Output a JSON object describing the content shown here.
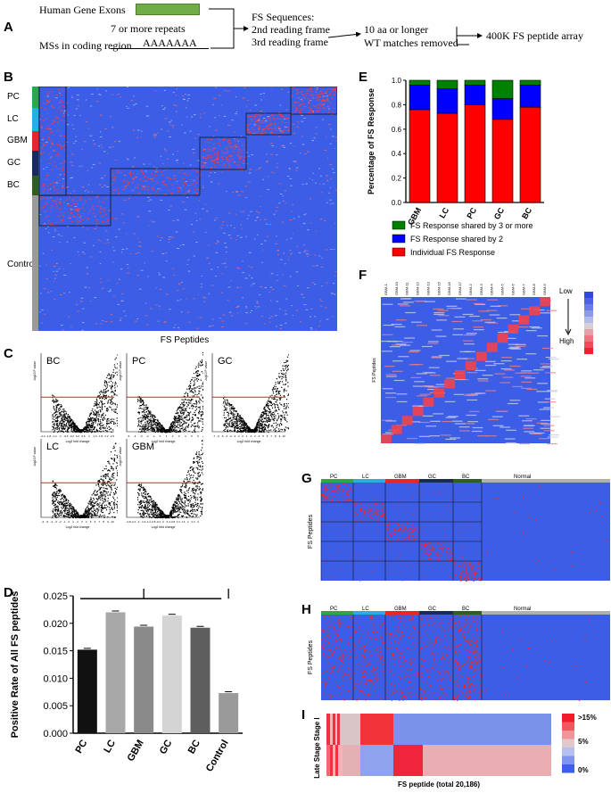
{
  "panels": {
    "A": "A",
    "B": "B",
    "C": "C",
    "D": "D",
    "E": "E",
    "F": "F",
    "G": "G",
    "H": "H",
    "I": "I"
  },
  "flow": {
    "exons": "Human Gene Exons",
    "repeats": "7 or more repeats",
    "ms": "MSs in coding region",
    "polyA": "AAAAAAA",
    "fs_title": "FS Sequences:",
    "frame2": "2nd reading frame",
    "frame3": "3rd reading frame",
    "filter1": "10 aa or longer",
    "filter2": "WT matches removed",
    "array": "400K FS peptide array"
  },
  "heatmapB": {
    "groups": [
      {
        "label": "PC",
        "color": "#2aa84a"
      },
      {
        "label": "LC",
        "color": "#27aee3"
      },
      {
        "label": "GBM",
        "color": "#e5262a"
      },
      {
        "label": "GC",
        "color": "#1a2a5e"
      },
      {
        "label": "BC",
        "color": "#2f5e23"
      },
      {
        "label": "Control",
        "color": "#9a9a9a"
      }
    ],
    "xlabel": "FS Peptides"
  },
  "volcano": {
    "xlabel": "Log2 fold change",
    "ylabel": "-log10 P value",
    "plots": [
      {
        "label": "BC",
        "xticks": [
          "-2.2",
          "-1.8",
          "-1.4",
          "-1",
          "-0.6",
          "-0.2",
          "0.2",
          "0.6",
          "1",
          "1.4",
          "1.8",
          "2.2",
          "2.6"
        ]
      },
      {
        "label": "PC",
        "xticks": [
          "-5",
          "-4",
          "-3",
          "-2",
          "-1",
          "0",
          "1",
          "2",
          "3",
          "4",
          "5",
          "6"
        ]
      },
      {
        "label": "GC",
        "xticks": [
          "-7",
          "-6",
          "-5",
          "-4",
          "-3",
          "-2",
          "-1",
          "0",
          "1",
          "2",
          "3",
          "4",
          "5",
          "6",
          "7",
          "8",
          "9",
          "10"
        ]
      },
      {
        "label": "LC",
        "xticks": [
          "-6",
          "-5",
          "-4",
          "-3",
          "-2",
          "-1",
          "0",
          "1",
          "2",
          "3",
          "4",
          "5",
          "6",
          "7",
          "8",
          "9",
          "10"
        ]
      },
      {
        "label": "GBM",
        "xticks": [
          "-2.8",
          "-2.4",
          "-2",
          "-1.6",
          "-1.2",
          "-0.8",
          "-0.4",
          "0",
          "0.4",
          "0.8",
          "1.2",
          "1.6",
          "2",
          "2.4",
          "3"
        ]
      }
    ]
  },
  "chart_data": [
    {
      "type": "bar",
      "panel": "D",
      "categories": [
        "PC",
        "LC",
        "GBM",
        "GC",
        "BC",
        "Control"
      ],
      "values": [
        0.0152,
        0.022,
        0.0194,
        0.0214,
        0.0192,
        0.0073
      ],
      "colors": [
        "#111111",
        "#a8a8a8",
        "#8a8a8a",
        "#d4d4d4",
        "#5e5e5e",
        "#9a9a9a"
      ],
      "ylabel": "Positive Rate of All FS peptides",
      "ylim": [
        0,
        0.025
      ],
      "yticks": [
        "0.000",
        "0.005",
        "0.010",
        "0.015",
        "0.020",
        "0.025"
      ],
      "annotation": "***"
    },
    {
      "type": "bar",
      "panel": "E",
      "stacked": true,
      "categories": [
        "GBM",
        "LC",
        "PC",
        "GC",
        "BC"
      ],
      "series": [
        {
          "name": "Individual FS Response",
          "color": "#ff0000",
          "values": [
            0.76,
            0.73,
            0.8,
            0.68,
            0.78
          ]
        },
        {
          "name": "FS Response shared by 2",
          "color": "#0000ff",
          "values": [
            0.2,
            0.2,
            0.16,
            0.17,
            0.18
          ]
        },
        {
          "name": "FS Response shared by 3 or more",
          "color": "#008000",
          "values": [
            0.04,
            0.07,
            0.04,
            0.15,
            0.04
          ]
        }
      ],
      "legend_order": [
        "FS Response shared by 3 or more",
        "FS Response shared by 2",
        "Individual FS Response"
      ],
      "ylabel": "Percentage of FS Response",
      "ylim": [
        0,
        1
      ],
      "yticks": [
        "0.0",
        "0.2",
        "0.4",
        "0.6",
        "0.8",
        "1.0"
      ]
    }
  ],
  "heatmapF": {
    "cols": [
      "GBM-1",
      "GBM-10",
      "GBM-11",
      "GBM-12",
      "GBM-13",
      "GBM-15",
      "GBM-16",
      "GBM-17",
      "GBM-2",
      "GBM-3",
      "GBM-4",
      "GBM-5",
      "GBM-6",
      "GBM-7",
      "GBM-8",
      "GBM-9"
    ],
    "ylabel": "FS Peptides",
    "scale_low": "Low",
    "scale_high": "High"
  },
  "heatmapG": {
    "groups": [
      {
        "label": "PC",
        "color": "#2aa84a"
      },
      {
        "label": "LC",
        "color": "#27aee3"
      },
      {
        "label": "GBM",
        "color": "#e5262a"
      },
      {
        "label": "GC",
        "color": "#1a2a5e"
      },
      {
        "label": "BC",
        "color": "#2f5e23"
      },
      {
        "label": "Normal",
        "color": "#b0b0b0"
      }
    ],
    "ylabel": "FS Peptides"
  },
  "heatmapH": {
    "groups": [
      {
        "label": "PC",
        "color": "#2aa84a"
      },
      {
        "label": "LC",
        "color": "#27aee3"
      },
      {
        "label": "GBM",
        "color": "#e5262a"
      },
      {
        "label": "GC",
        "color": "#1a2a5e"
      },
      {
        "label": "BC",
        "color": "#2f5e23"
      },
      {
        "label": "Normal",
        "color": "#b0b0b0"
      }
    ],
    "ylabel": "FS Peptides"
  },
  "heatmapI": {
    "rows": [
      "Stage I",
      "Late Stage"
    ],
    "xlabel": "FS peptide  (total 20,186)",
    "scale": [
      ">15%",
      "5%",
      "0%"
    ]
  }
}
